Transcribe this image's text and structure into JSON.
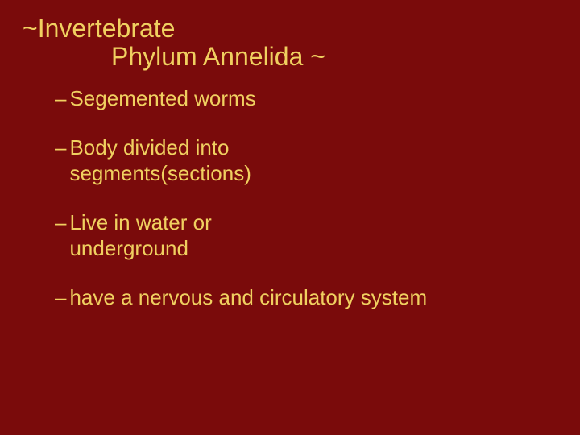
{
  "slide": {
    "background_color": "#7a0b0b",
    "text_color": "#f0d060",
    "title": {
      "line1": "~Invertebrate",
      "line2": "Phylum Annelida ~",
      "fontsize": 32
    },
    "bullets": [
      {
        "dash": "–",
        "text": "Segemented worms"
      },
      {
        "dash": "–",
        "text": "Body divided into segments(sections)"
      },
      {
        "dash": "–",
        "text": "Live in water or underground"
      },
      {
        "dash": "–",
        "text": "have a nervous and circulatory system"
      }
    ],
    "bullet_fontsize": 26
  }
}
